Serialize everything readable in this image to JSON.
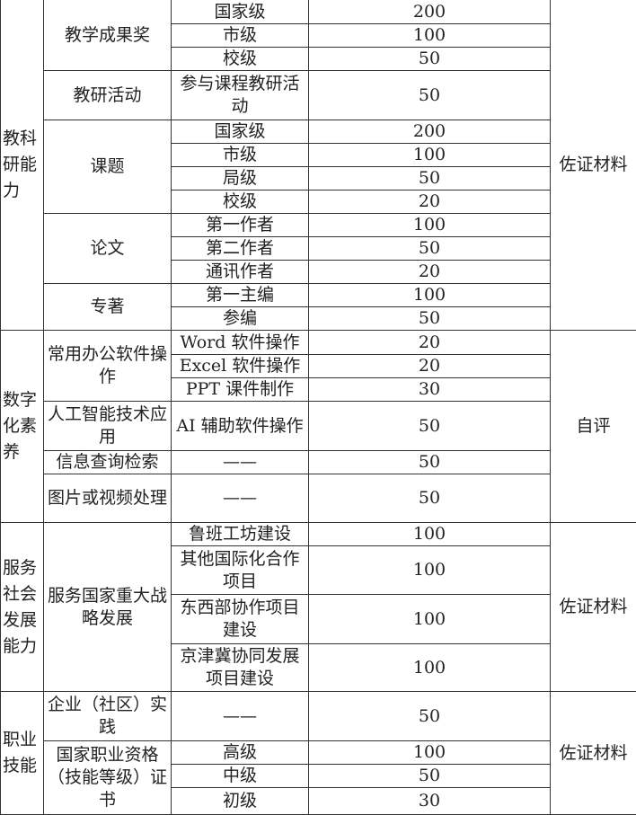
{
  "sections": [
    {
      "category": "教科研能力",
      "evidence": "佐证材料",
      "groups": [
        {
          "name": "教学成果奖",
          "items": [
            {
              "item": "国家级",
              "score": "200"
            },
            {
              "item": "市级",
              "score": "100"
            },
            {
              "item": "校级",
              "score": "50"
            }
          ]
        },
        {
          "name": "教研活动",
          "items": [
            {
              "item": "参与课程教研活动",
              "score": "50"
            }
          ]
        },
        {
          "name": "课题",
          "items": [
            {
              "item": "国家级",
              "score": "200"
            },
            {
              "item": "市级",
              "score": "100"
            },
            {
              "item": "局级",
              "score": "50"
            },
            {
              "item": "校级",
              "score": "20"
            }
          ]
        },
        {
          "name": "论文",
          "items": [
            {
              "item": "第一作者",
              "score": "100"
            },
            {
              "item": "第二作者",
              "score": "50"
            },
            {
              "item": "通讯作者",
              "score": "20"
            }
          ]
        },
        {
          "name": "专著",
          "items": [
            {
              "item": "第一主编",
              "score": "100"
            },
            {
              "item": "参编",
              "score": "50"
            }
          ]
        }
      ]
    },
    {
      "category": "数字化素养",
      "evidence": "自评",
      "groups": [
        {
          "name": "常用办公软件操作",
          "items": [
            {
              "item": "Word 软件操作",
              "score": "20"
            },
            {
              "item": "Excel 软件操作",
              "score": "20"
            },
            {
              "item": "PPT 课件制作",
              "score": "30"
            }
          ]
        },
        {
          "name": "人工智能技术应用",
          "items": [
            {
              "item": "AI 辅助软件操作",
              "score": "50"
            }
          ]
        },
        {
          "name": "信息查询检索",
          "items": [
            {
              "item": "——",
              "score": "50"
            }
          ]
        },
        {
          "name": "图片或视频处理",
          "items": [
            {
              "item": "——",
              "score": "50"
            }
          ]
        }
      ]
    },
    {
      "category": "服务社会发展能力",
      "evidence": "佐证材料",
      "groups": [
        {
          "name": "服务国家重大战略发展",
          "items": [
            {
              "item": "鲁班工坊建设",
              "score": "100"
            },
            {
              "item": "其他国际化合作项目",
              "score": "100"
            },
            {
              "item": "东西部协作项目建设",
              "score": "100"
            },
            {
              "item": "京津冀协同发展项目建设",
              "score": "100"
            }
          ]
        }
      ]
    },
    {
      "category": "职业技能",
      "evidence": "佐证材料",
      "groups": [
        {
          "name": "企业（社区）实践",
          "items": [
            {
              "item": "——",
              "score": "50"
            }
          ]
        },
        {
          "name": "国家职业资格（技能等级）证书",
          "items": [
            {
              "item": "高级",
              "score": "100"
            },
            {
              "item": "中级",
              "score": "50"
            },
            {
              "item": "初级",
              "score": "30"
            }
          ]
        }
      ]
    }
  ]
}
